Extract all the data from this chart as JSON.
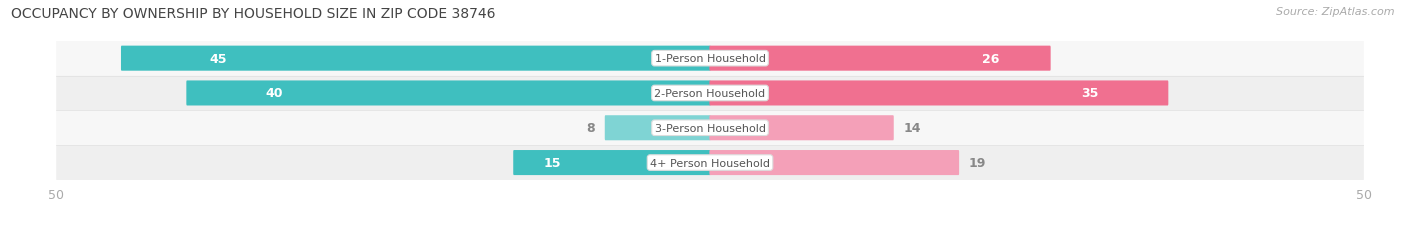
{
  "title": "OCCUPANCY BY OWNERSHIP BY HOUSEHOLD SIZE IN ZIP CODE 38746",
  "source": "Source: ZipAtlas.com",
  "categories": [
    "1-Person Household",
    "2-Person Household",
    "3-Person Household",
    "4+ Person Household"
  ],
  "owner_values": [
    45,
    40,
    8,
    15
  ],
  "renter_values": [
    26,
    35,
    14,
    19
  ],
  "owner_color": "#3FBFBF",
  "owner_color_light": "#7FD4D4",
  "renter_color": "#F07090",
  "renter_color_light": "#F4A0B8",
  "label_white": "#FFFFFF",
  "label_dark": "#888888",
  "row_bg_even": "#F7F7F7",
  "row_bg_odd": "#EFEFEF",
  "max_val": 50,
  "bar_height": 0.62,
  "title_fontsize": 10,
  "source_fontsize": 8,
  "value_fontsize": 9,
  "cat_fontsize": 8,
  "tick_fontsize": 9,
  "background_color": "#FFFFFF",
  "axis_label_color": "#AAAAAA",
  "center_label_bg": "#FFFFFF",
  "center_label_border": "#DDDDDD",
  "row_sep_color": "#E0E0E0"
}
